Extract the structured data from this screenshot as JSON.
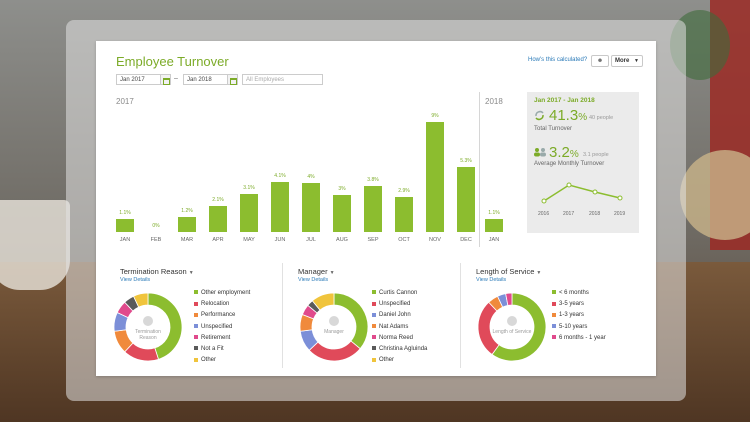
{
  "header": {
    "title": "Employee Turnover",
    "how_link": "How's this calculated?",
    "more_label": "More"
  },
  "filters": {
    "start_date": "Jan 2017",
    "end_date": "Jan 2018",
    "employees_placeholder": "All Employees"
  },
  "years": {
    "left": "2017",
    "right": "2018"
  },
  "bars": {
    "months": [
      "JAN",
      "FEB",
      "MAR",
      "APR",
      "MAY",
      "JUN",
      "JUL",
      "AUG",
      "SEP",
      "OCT",
      "NOV",
      "DEC",
      "JAN"
    ],
    "labels": [
      "1.1%",
      "0%",
      "1.2%",
      "2.1%",
      "3.1%",
      "4.1%",
      "4%",
      "3%",
      "3.8%",
      "2.9%",
      "9%",
      "5.3%",
      "1.1%"
    ],
    "values": [
      1.1,
      0,
      1.2,
      2.1,
      3.1,
      4.1,
      4,
      3,
      3.8,
      2.9,
      9,
      5.3,
      1.1
    ]
  },
  "stats": {
    "range": "Jan 2017 - Jan 2018",
    "total_pct": "41.3",
    "pct_sign": "%",
    "total_people": "40 people",
    "total_label": "Total Turnover",
    "monthly_pct": "3.2",
    "monthly_people": "3.1 people",
    "monthly_label": "Average Monthly Turnover",
    "trend_years": [
      "2016",
      "2017",
      "2018",
      "2019"
    ]
  },
  "panels": {
    "termination": {
      "title": "Termination Reason",
      "view": "View Details",
      "center": "Termination Reason",
      "items": [
        "Other employment",
        "Relocation",
        "Performance",
        "Unspecified",
        "Retirement",
        "Not a Fit",
        "Other"
      ],
      "colors": [
        "#8cbd2f",
        "#e04a5a",
        "#f08a3c",
        "#7c8fd8",
        "#e04a8c",
        "#5a5a5a",
        "#f0c43c"
      ],
      "shares": [
        0.45,
        0.17,
        0.11,
        0.09,
        0.06,
        0.05,
        0.07
      ]
    },
    "manager": {
      "title": "Manager",
      "view": "View Details",
      "center": "Manager",
      "items": [
        "Curtis Cannon",
        "Unspecified",
        "Daniel John",
        "Nat Adams",
        "Norma Reed",
        "Christina Agluinda",
        "Other"
      ],
      "colors": [
        "#8cbd2f",
        "#e04a5a",
        "#7c8fd8",
        "#f08a3c",
        "#e04a8c",
        "#5a5a5a",
        "#f0c43c"
      ],
      "shares": [
        0.36,
        0.27,
        0.1,
        0.08,
        0.05,
        0.03,
        0.11
      ]
    },
    "service": {
      "title": "Length of Service",
      "view": "View Details",
      "center": "Length of Service",
      "items": [
        "< 6 months",
        "3-5 years",
        "1-3 years",
        "5-10 years",
        "6 months - 1 year"
      ],
      "colors": [
        "#8cbd2f",
        "#e04a5a",
        "#f08a3c",
        "#7c8fd8",
        "#e04a8c"
      ],
      "shares": [
        0.6,
        0.28,
        0.05,
        0.04,
        0.03
      ]
    }
  }
}
